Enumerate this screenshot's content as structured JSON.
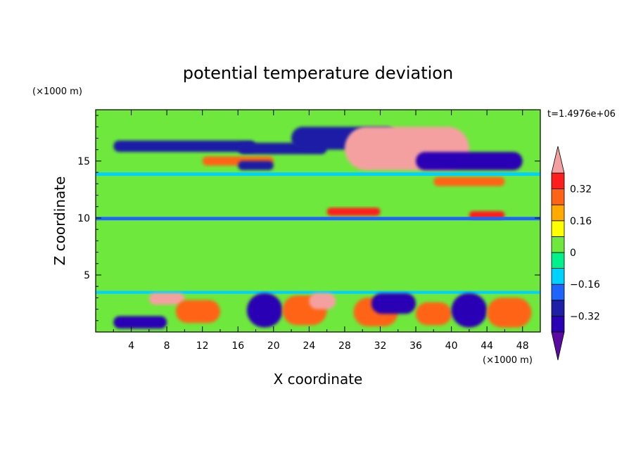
{
  "chart_data": {
    "type": "heatmap",
    "title": "potential temperature deviation",
    "xlabel": "X coordinate",
    "ylabel": "Z coordinate",
    "x_unit": "(×1000 m)",
    "y_unit": "(×1000 m)",
    "time_label": "t=1.4976e+06",
    "xlim": [
      0,
      50
    ],
    "ylim": [
      0,
      19.5
    ],
    "x_ticks": [
      4,
      8,
      12,
      16,
      20,
      24,
      28,
      32,
      36,
      40,
      44,
      48
    ],
    "y_ticks": [
      5,
      10,
      15
    ],
    "colorbar": {
      "levels": [
        -0.4,
        -0.32,
        -0.24,
        -0.16,
        -0.08,
        0,
        0.08,
        0.16,
        0.24,
        0.32,
        0.4
      ],
      "tick_labels": [
        "0.32",
        "0.16",
        "0",
        "−0.16",
        "−0.32"
      ],
      "tick_values": [
        0.32,
        0.16,
        0,
        -0.16,
        -0.32
      ],
      "colors": [
        "#5a0aa0",
        "#2a00b4",
        "#1e1ea6",
        "#1e64ff",
        "#00d2ff",
        "#00f08c",
        "#6ee83c",
        "#ffff00",
        "#ffaa00",
        "#ff6414",
        "#ff1e1e",
        "#f5a0a0"
      ]
    },
    "features": [
      {
        "x0": 0,
        "x1": 50,
        "y0": 0,
        "y1": 19.5,
        "value": 0.04
      },
      {
        "x0": 0,
        "x1": 50,
        "y0": 3.5,
        "y1": 13.5,
        "value": 0.0
      },
      {
        "x0": 2,
        "x1": 18,
        "y0": 15.8,
        "y1": 16.8,
        "value": -0.3
      },
      {
        "x0": 16,
        "x1": 26,
        "y0": 15.6,
        "y1": 16.6,
        "value": -0.3
      },
      {
        "x0": 22,
        "x1": 34,
        "y0": 16.0,
        "y1": 18.0,
        "value": -0.3
      },
      {
        "x0": 28,
        "x1": 42,
        "y0": 14.2,
        "y1": 18.0,
        "value": 0.4
      },
      {
        "x0": 36,
        "x1": 48,
        "y0": 14.2,
        "y1": 15.8,
        "value": -0.38
      },
      {
        "x0": 12,
        "x1": 20,
        "y0": 14.6,
        "y1": 15.4,
        "value": 0.3
      },
      {
        "x0": 16,
        "x1": 20,
        "y0": 14.2,
        "y1": 15.0,
        "value": -0.3
      },
      {
        "x0": 38,
        "x1": 46,
        "y0": 12.8,
        "y1": 13.6,
        "value": 0.3
      },
      {
        "x0": 26,
        "x1": 32,
        "y0": 10.2,
        "y1": 10.9,
        "value": 0.35
      },
      {
        "x0": 42,
        "x1": 46,
        "y0": 9.9,
        "y1": 10.6,
        "value": 0.35
      },
      {
        "x0": 0,
        "x1": 50,
        "y0": 9.8,
        "y1": 10.1,
        "value": -0.18
      },
      {
        "x0": 0,
        "x1": 50,
        "y0": 13.7,
        "y1": 14.0,
        "value": -0.12
      },
      {
        "x0": 0,
        "x1": 50,
        "y0": 3.35,
        "y1": 3.6,
        "value": -0.14
      },
      {
        "x0": 6,
        "x1": 10,
        "y0": 2.4,
        "y1": 3.4,
        "value": 0.4
      },
      {
        "x0": 2,
        "x1": 8,
        "y0": 0.3,
        "y1": 1.4,
        "value": -0.35
      },
      {
        "x0": 9,
        "x1": 14,
        "y0": 0.8,
        "y1": 2.8,
        "value": 0.3
      },
      {
        "x0": 17,
        "x1": 21,
        "y0": 0.4,
        "y1": 3.4,
        "value": -0.38
      },
      {
        "x0": 21,
        "x1": 26,
        "y0": 0.6,
        "y1": 3.2,
        "value": 0.28
      },
      {
        "x0": 24,
        "x1": 27,
        "y0": 2.0,
        "y1": 3.4,
        "value": 0.4
      },
      {
        "x0": 29,
        "x1": 34,
        "y0": 0.5,
        "y1": 3.0,
        "value": 0.3
      },
      {
        "x0": 31,
        "x1": 36,
        "y0": 1.6,
        "y1": 3.4,
        "value": -0.38
      },
      {
        "x0": 36,
        "x1": 40,
        "y0": 0.6,
        "y1": 2.6,
        "value": 0.25
      },
      {
        "x0": 40,
        "x1": 44,
        "y0": 0.4,
        "y1": 3.4,
        "value": -0.4
      },
      {
        "x0": 44,
        "x1": 49,
        "y0": 0.4,
        "y1": 3.0,
        "value": 0.28
      }
    ]
  }
}
